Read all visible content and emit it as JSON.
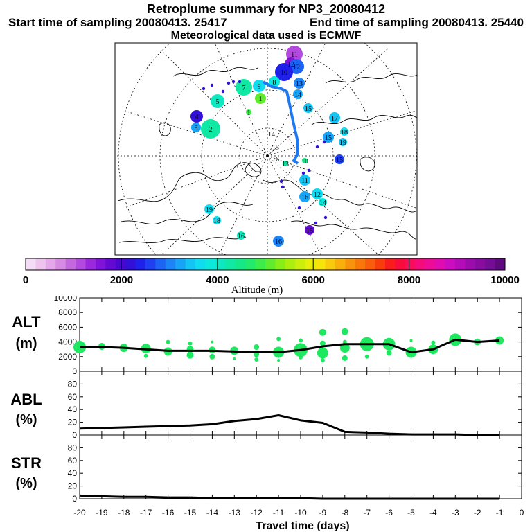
{
  "header": {
    "title": "Retroplume summary for NP3_20080412",
    "start_time": "Start time of sampling 20080413. 25417",
    "end_time": "End time of sampling 20080413. 25440",
    "met_data": "Meteorological data used is ECMWF"
  },
  "map": {
    "description_labels": [
      "1",
      "2",
      "3",
      "4",
      "5",
      "6",
      "7",
      "8",
      "9",
      "10",
      "11",
      "12",
      "13",
      "14",
      "15",
      "16",
      "17",
      "18",
      "19",
      "20"
    ],
    "trajectory_color": "#1e78f0"
  },
  "colorbar": {
    "tick_labels": [
      "0",
      "2000",
      "4000",
      "6000",
      "8000",
      "10000"
    ],
    "label": "Altitude (m)",
    "colors": [
      "#f4dcf4",
      "#ecc4ec",
      "#e4a8e8",
      "#d68ae2",
      "#c468de",
      "#b24ae0",
      "#9a28dc",
      "#7f14d8",
      "#6408d4",
      "#4808d0",
      "#3210d8",
      "#2020e8",
      "#1e40f0",
      "#1e64f4",
      "#1c84f4",
      "#18a4f4",
      "#14c4f4",
      "#10dcf0",
      "#0ce8dc",
      "#0ee8c0",
      "#10e8a4",
      "#14e888",
      "#22ea6a",
      "#3cec48",
      "#60ec2c",
      "#88ee18",
      "#acee10",
      "#ccee0c",
      "#e8ee0c",
      "#f4e40c",
      "#f8cc0c",
      "#f8b00c",
      "#f8940c",
      "#f8780c",
      "#f85c0c",
      "#f83c0c",
      "#f81c1c",
      "#f80c3c",
      "#f80c5c",
      "#f40c7c",
      "#ec0c98",
      "#e00cb0",
      "#cc0cc0",
      "#b40cb8",
      "#9c0cac",
      "#880ca0",
      "#740c94",
      "#5e0a7e"
    ]
  },
  "chart_data": [
    {
      "type": "line",
      "name": "ALT",
      "panel_label": "ALT",
      "unit_label": "(m)",
      "x": [
        -20,
        -19,
        -18,
        -17,
        -16,
        -15,
        -14,
        -13,
        -12,
        -11,
        -10,
        -9,
        -8,
        -7,
        -6,
        -5,
        -4,
        -3,
        -2,
        -1
      ],
      "values": [
        3300,
        3300,
        3200,
        3000,
        2800,
        2800,
        2800,
        2700,
        2600,
        2600,
        2900,
        3400,
        3700,
        3700,
        3700,
        2600,
        3000,
        4300,
        4000,
        4200
      ],
      "ylim": [
        0,
        10000
      ],
      "yticks": [
        "0",
        "2000",
        "4000",
        "6000",
        "8000",
        "10000"
      ],
      "scatter": [
        {
          "x": -20,
          "y": 3300,
          "s": 9
        },
        {
          "x": -19,
          "y": 3400,
          "s": 5
        },
        {
          "x": -18,
          "y": 3200,
          "s": 6
        },
        {
          "x": -17,
          "y": 3100,
          "s": 7
        },
        {
          "x": -17,
          "y": 2100,
          "s": 3
        },
        {
          "x": -16,
          "y": 2700,
          "s": 6
        },
        {
          "x": -16,
          "y": 4000,
          "s": 3
        },
        {
          "x": -15,
          "y": 3000,
          "s": 5
        },
        {
          "x": -15,
          "y": 2200,
          "s": 5
        },
        {
          "x": -15,
          "y": 3800,
          "s": 3
        },
        {
          "x": -14,
          "y": 2900,
          "s": 5
        },
        {
          "x": -14,
          "y": 2000,
          "s": 4
        },
        {
          "x": -14,
          "y": 4000,
          "s": 2
        },
        {
          "x": -13,
          "y": 2800,
          "s": 6
        },
        {
          "x": -13,
          "y": 1700,
          "s": 2
        },
        {
          "x": -12,
          "y": 3300,
          "s": 4
        },
        {
          "x": -12,
          "y": 2300,
          "s": 4
        },
        {
          "x": -12,
          "y": 1600,
          "s": 3
        },
        {
          "x": -11,
          "y": 2600,
          "s": 8
        },
        {
          "x": -11,
          "y": 4400,
          "s": 3
        },
        {
          "x": -11,
          "y": 1500,
          "s": 2
        },
        {
          "x": -10,
          "y": 2900,
          "s": 10
        },
        {
          "x": -10,
          "y": 4200,
          "s": 3
        },
        {
          "x": -10,
          "y": 1900,
          "s": 3
        },
        {
          "x": -9,
          "y": 2500,
          "s": 8
        },
        {
          "x": -9,
          "y": 5300,
          "s": 5
        },
        {
          "x": -9,
          "y": 3800,
          "s": 4
        },
        {
          "x": -9,
          "y": 1500,
          "s": 3
        },
        {
          "x": -8,
          "y": 3200,
          "s": 7
        },
        {
          "x": -8,
          "y": 5400,
          "s": 5
        },
        {
          "x": -8,
          "y": 1800,
          "s": 4
        },
        {
          "x": -8,
          "y": 4000,
          "s": 3
        },
        {
          "x": -7,
          "y": 3700,
          "s": 10
        },
        {
          "x": -7,
          "y": 2000,
          "s": 3
        },
        {
          "x": -6,
          "y": 3700,
          "s": 9
        },
        {
          "x": -6,
          "y": 2500,
          "s": 4
        },
        {
          "x": -5,
          "y": 2600,
          "s": 8
        },
        {
          "x": -5,
          "y": 4200,
          "s": 2
        },
        {
          "x": -4,
          "y": 3000,
          "s": 7
        },
        {
          "x": -4,
          "y": 3900,
          "s": 3
        },
        {
          "x": -3,
          "y": 4300,
          "s": 9
        },
        {
          "x": -2,
          "y": 4000,
          "s": 5
        },
        {
          "x": -1,
          "y": 4200,
          "s": 6
        }
      ]
    },
    {
      "type": "line",
      "name": "ABL",
      "panel_label": "ABL",
      "unit_label": "(%)",
      "x": [
        -20,
        -19,
        -18,
        -17,
        -16,
        -15,
        -14,
        -13,
        -12,
        -11,
        -10,
        -9,
        -8,
        -7,
        -6,
        -5,
        -4,
        -3,
        -2,
        -1
      ],
      "values": [
        10,
        11,
        12,
        13,
        14,
        15,
        17,
        22,
        25,
        31,
        23,
        19,
        5,
        4,
        2,
        1,
        1,
        1,
        0,
        0
      ],
      "ylim": [
        0,
        100
      ],
      "yticks": [
        "0",
        "20",
        "40",
        "60",
        "80"
      ]
    },
    {
      "type": "line",
      "name": "STR",
      "panel_label": "STR",
      "unit_label": "(%)",
      "x": [
        -20,
        -19,
        -18,
        -17,
        -16,
        -15,
        -14,
        -13,
        -12,
        -11,
        -10,
        -9,
        -8,
        -7,
        -6,
        -5,
        -4,
        -3,
        -2,
        -1
      ],
      "values": [
        5,
        4,
        3,
        3,
        2,
        2,
        1,
        1,
        1,
        1,
        1,
        0,
        0,
        0,
        0,
        0,
        0,
        0,
        0,
        0
      ],
      "ylim": [
        0,
        100
      ],
      "yticks": [
        "0",
        "20",
        "40",
        "60",
        "80"
      ]
    }
  ],
  "xaxis": {
    "tick_labels": [
      "-20",
      "-19",
      "-18",
      "-17",
      "-16",
      "-15",
      "-14",
      "-13",
      "-12",
      "-11",
      "-10",
      "-9",
      "-8",
      "-7",
      "-6",
      "-5",
      "-4",
      "-3",
      "-2",
      "-1",
      "0"
    ],
    "label": "Travel time (days)"
  }
}
